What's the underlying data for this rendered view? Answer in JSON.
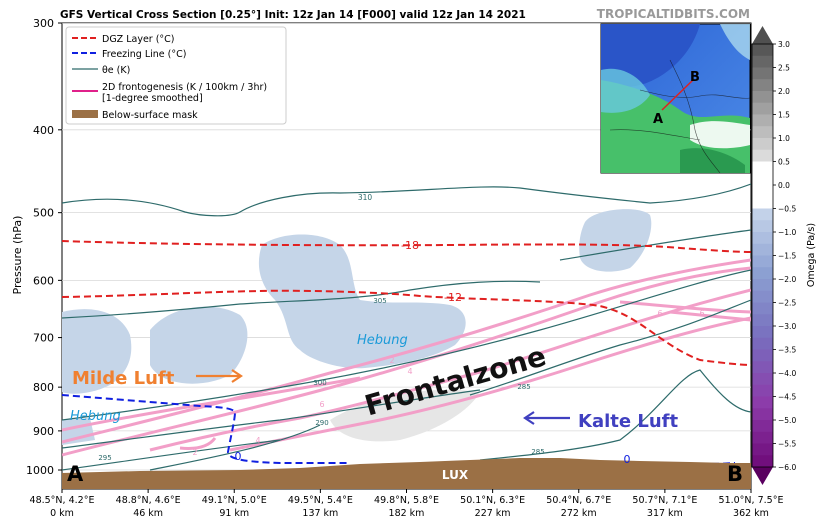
{
  "chart_data": {
    "type": "cross-section",
    "title": "GFS Vertical Cross Section [0.25°] Init: 12z Jan 14 [F000] valid 12z Jan 14 2021",
    "site": "TROPICALTIDBITS.COM",
    "ylabel": "Pressure (hPa)",
    "y_scale": "log",
    "y_range": [
      1000,
      300
    ],
    "y_ticks": [
      "300",
      "400",
      "500",
      "600",
      "700",
      "800",
      "900",
      "1000"
    ],
    "x_ticks": [
      {
        "coord": "48.5°N, 4.2°E",
        "dist": "0 km"
      },
      {
        "coord": "48.8°N, 4.6°E",
        "dist": "46 km"
      },
      {
        "coord": "49.1°N, 5.0°E",
        "dist": "91 km"
      },
      {
        "coord": "49.5°N, 5.4°E",
        "dist": "137 km"
      },
      {
        "coord": "49.8°N, 5.8°E",
        "dist": "182 km"
      },
      {
        "coord": "50.1°N, 6.3°E",
        "dist": "227 km"
      },
      {
        "coord": "50.4°N, 6.7°E",
        "dist": "272 km"
      },
      {
        "coord": "50.7°N, 7.1°E",
        "dist": "317 km"
      },
      {
        "coord": "51.0°N, 7.5°E",
        "dist": "362 km"
      }
    ],
    "colorbar": {
      "label": "Omega (Pa/s)",
      "ticks": [
        "3.0",
        "2.5",
        "2.0",
        "1.5",
        "1.0",
        "0.5",
        "0.0",
        "−0.5",
        "−1.0",
        "−1.5",
        "−2.0",
        "−2.5",
        "−3.0",
        "−3.5",
        "−4.0",
        "−4.5",
        "−5.0",
        "−5.5",
        "−6.0"
      ]
    },
    "legend": [
      {
        "label": "DGZ Layer (°C)",
        "color": "#e02020",
        "style": "dashed"
      },
      {
        "label": "Freezing Line (°C)",
        "color": "#1020e0",
        "style": "dashed"
      },
      {
        "label": "θe (K)",
        "color": "#2e6b6b",
        "style": "solid"
      },
      {
        "label": "2D frontogenesis (K / 100km / 3hr)\n[1-degree smoothed]",
        "color": "#e0208a",
        "style": "solid"
      },
      {
        "label": "Below-surface mask",
        "color": "#9b7045",
        "style": "patch"
      }
    ],
    "contour_labels": {
      "dgz": [
        "-18",
        "-12"
      ],
      "freezing": [
        "0",
        "0"
      ],
      "theta_e": [
        "310",
        "305",
        "300",
        "295",
        "290",
        "285",
        "285"
      ],
      "frontogenesis": [
        "2",
        "4",
        "4",
        "6",
        "6",
        "6",
        "4",
        "2"
      ]
    },
    "annotations": {
      "milde_luft": "Milde Luft",
      "kalte_luft": "Kalte Luft",
      "frontalzone": "Frontalzone",
      "hebung_left": "Hebung",
      "hebung_right": "Hebung",
      "lux": "LUX",
      "point_a": "A",
      "point_b": "B",
      "map_a": "A",
      "map_b": "B"
    }
  }
}
